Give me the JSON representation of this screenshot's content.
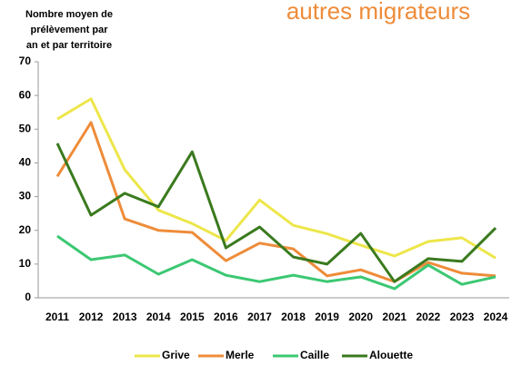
{
  "chart_data": {
    "type": "line",
    "title": "autres migrateurs",
    "ylabel": [
      "Nombre moyen de",
      "prélèvement par",
      "an et par territoire"
    ],
    "categories": [
      "2011",
      "2012",
      "2013",
      "2014",
      "2015",
      "2016",
      "2017",
      "2018",
      "2019",
      "2020",
      "2021",
      "2022",
      "2023",
      "2024"
    ],
    "series": [
      {
        "name": "Grive",
        "color": "#ede64a",
        "values": [
          53,
          59,
          38,
          26,
          22,
          17,
          29,
          21.5,
          19,
          15.6,
          12.4,
          16.7,
          17.8,
          11.8
        ]
      },
      {
        "name": "Merle",
        "color": "#ee8c3a",
        "values": [
          36,
          52,
          23.4,
          20,
          19.4,
          11,
          16.2,
          14.5,
          6.5,
          8.3,
          4.8,
          10.5,
          7.3,
          6.5
        ]
      },
      {
        "name": "Caille",
        "color": "#3cc873",
        "values": [
          18.3,
          11.3,
          12.7,
          7,
          11.3,
          6.7,
          4.8,
          6.7,
          4.8,
          6.2,
          2.7,
          9.7,
          4,
          6.2
        ]
      },
      {
        "name": "Alouette",
        "color": "#3a7a1e",
        "values": [
          45.8,
          24.5,
          31,
          27,
          43.3,
          14.8,
          21,
          12.1,
          10,
          19.1,
          4.8,
          11.6,
          10.8,
          20.7
        ]
      }
    ],
    "ylim": [
      0,
      70
    ],
    "yticks": [
      0,
      10,
      20,
      30,
      40,
      50,
      60,
      70
    ],
    "grid": false,
    "legend": "bottom"
  }
}
